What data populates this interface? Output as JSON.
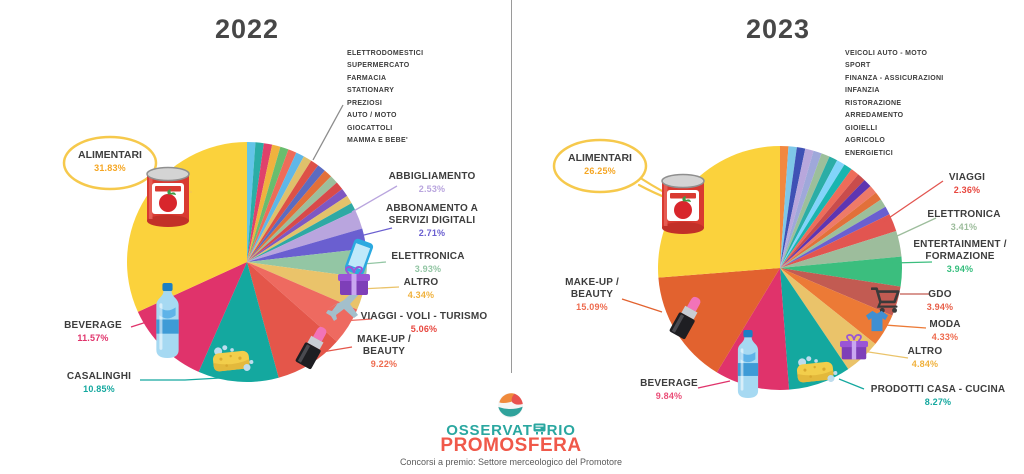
{
  "footer": {
    "logo_word1a": "OSSERVAT",
    "logo_word1b": "RIO",
    "logo_word2": "PROMOSFERA",
    "caption": "Concorsi a premio: Settore merceologico del Promotore",
    "logo_teal": "#2AA7A0",
    "logo_red": "#F0594A"
  },
  "divider_color": "#9a9a9a",
  "accent_bubble_yellow": "#F6C94C",
  "chart_data": [
    {
      "type": "pie",
      "title": "2022",
      "legend_position": "top-right",
      "unlabeled_legend": [
        "ELETTRODOMESTICI",
        "SUPERMERCATO",
        "FARMACIA",
        "STATIONARY",
        "PREZIOSI",
        "AUTO / MOTO",
        "GIOCATTOLI",
        "MAMMA E BEBE'"
      ],
      "unlabeled_total_pct": 17.96,
      "sliver_colors": [
        "#62C4E8",
        "#2BADA6",
        "#E0416B",
        "#F0B23E",
        "#69BD6E",
        "#EE6C5A",
        "#5FB7E8",
        "#DFC06B",
        "#DD5147",
        "#5C6BC0",
        "#E2703A",
        "#9CBF9B",
        "#D84A4A",
        "#7E57C2",
        "#E3C26B",
        "#2FA9A4"
      ],
      "slices": [
        {
          "label": "ABBIGLIAMENTO",
          "value": 2.53,
          "pct_text": "2.53%",
          "color": "#B9A5DE",
          "pct_color": "#B9A5DE"
        },
        {
          "label": "ABBONAMENTO A SERVIZI DIGITALI",
          "value": 2.71,
          "pct_text": "2.71%",
          "color": "#6A5FD0",
          "pct_color": "#6A5FD0"
        },
        {
          "label": "ELETTRONICA",
          "value": 3.93,
          "pct_text": "3.93%",
          "color": "#93C6A4",
          "pct_color": "#93C6A4"
        },
        {
          "label": "ALTRO",
          "value": 4.34,
          "pct_text": "4.34%",
          "color": "#EAC36A",
          "pct_color": "#F0B23E"
        },
        {
          "label": "VIAGGI - VOLI - TURISMO",
          "value": 5.06,
          "pct_text": "5.06%",
          "color": "#EE6A60",
          "pct_color": "#E8473F"
        },
        {
          "label": "MAKE-UP / BEAUTY",
          "value": 9.22,
          "pct_text": "9.22%",
          "color": "#E4564A",
          "pct_color": "#EE6B4F"
        },
        {
          "label": "CASALINGHI",
          "value": 10.85,
          "pct_text": "10.85%",
          "color": "#14A89F",
          "pct_color": "#14A89F"
        },
        {
          "label": "BEVERAGE",
          "value": 11.57,
          "pct_text": "11.57%",
          "color": "#E0336B",
          "pct_color": "#E0336B"
        },
        {
          "label": "ALIMENTARI",
          "value": 31.83,
          "pct_text": "31.83%",
          "color": "#FBD23C",
          "pct_color": "#F5A623"
        }
      ]
    },
    {
      "type": "pie",
      "title": "2023",
      "legend_position": "top-right",
      "unlabeled_legend": [
        "VEICOLI AUTO - MOTO",
        "SPORT",
        "FINANZA - ASSICURAZIONI",
        "INFANZIA",
        "RISTORAZIONE",
        "ARREDAMENTO",
        "GIOIELLI",
        "AGRICOLO",
        "ENERGIETICI"
      ],
      "unlabeled_total_pct": 17.73,
      "sliver_colors": [
        "#F2883F",
        "#7EC8E8",
        "#3F51B5",
        "#B8A7DC",
        "#9FA8DA",
        "#9CBF9B",
        "#2BADA6",
        "#81D4FA",
        "#19B5B0",
        "#EE6C5A",
        "#C94C4C",
        "#5E35B1",
        "#EE7A68",
        "#E2703A",
        "#9CBF9B",
        "#6A5FD0"
      ],
      "slices": [
        {
          "label": "VIAGGI",
          "value": 2.36,
          "pct_text": "2.36%",
          "color": "#E25550",
          "pct_color": "#E8473F"
        },
        {
          "label": "ELETTRONICA",
          "value": 3.41,
          "pct_text": "3.41%",
          "color": "#9DBD9C",
          "pct_color": "#9DBD9C"
        },
        {
          "label": "ENTERTAINMENT / FORMAZIONE",
          "value": 3.94,
          "pct_text": "3.94%",
          "color": "#3BBE7E",
          "pct_color": "#35BE7D"
        },
        {
          "label": "GDO",
          "value": 3.94,
          "pct_text": "3.94%",
          "color": "#C25B52",
          "pct_color": "#E8604A"
        },
        {
          "label": "MODA",
          "value": 4.33,
          "pct_text": "4.33%",
          "color": "#EC7A36",
          "pct_color": "#EE6B4F"
        },
        {
          "label": "ALTRO",
          "value": 4.84,
          "pct_text": "4.84%",
          "color": "#EAC36A",
          "pct_color": "#F0B23E"
        },
        {
          "label": "PRODOTTI CASA - CUCINA",
          "value": 8.27,
          "pct_text": "8.27%",
          "color": "#14A89F",
          "pct_color": "#14A89F"
        },
        {
          "label": "BEVERAGE",
          "value": 9.84,
          "pct_text": "9.84%",
          "color": "#E0336B",
          "pct_color": "#EA4E78"
        },
        {
          "label": "MAKE-UP / BEAUTY",
          "value": 15.09,
          "pct_text": "15.09%",
          "color": "#E2622F",
          "pct_color": "#EE6B4F"
        },
        {
          "label": "ALIMENTARI",
          "value": 26.25,
          "pct_text": "26.25%",
          "color": "#FBD23C",
          "pct_color": "#F5A623"
        }
      ]
    }
  ]
}
